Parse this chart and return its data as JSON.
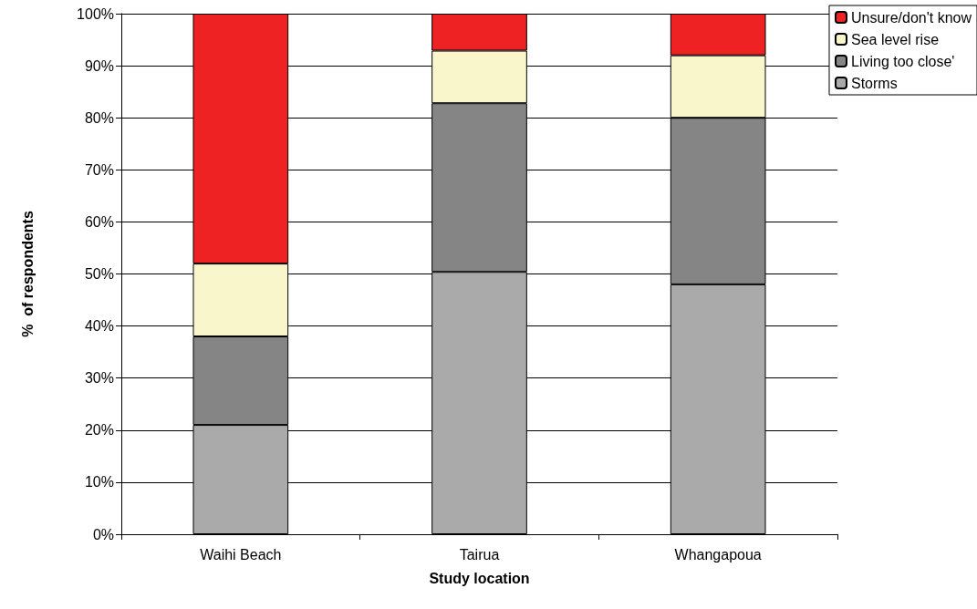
{
  "chart_data": {
    "type": "bar",
    "stacked": true,
    "xlabel": "Study location",
    "ylabel": "%  of respondents",
    "categories": [
      "Waihi Beach",
      "Tairua",
      "Whangapoua"
    ],
    "series": [
      {
        "name": "Storms",
        "color": "#aaaaaa",
        "values": [
          21,
          50.4,
          48
        ]
      },
      {
        "name": "Living too close'",
        "color": "#858585",
        "values": [
          17,
          32.4,
          32
        ]
      },
      {
        "name": "Sea level rise",
        "color": "#f9f6cb",
        "values": [
          14,
          10.1,
          12
        ]
      },
      {
        "name": "Unsure/don't know",
        "color": "#ee2222",
        "values": [
          48,
          7.1,
          8
        ]
      }
    ],
    "ylim": [
      0,
      100
    ],
    "yticks": [
      {
        "value": 0,
        "label": "0%"
      },
      {
        "value": 10,
        "label": "10%"
      },
      {
        "value": 20,
        "label": "20%"
      },
      {
        "value": 30,
        "label": "30%"
      },
      {
        "value": 40,
        "label": "40%"
      },
      {
        "value": 50,
        "label": "50%"
      },
      {
        "value": 60,
        "label": "60%"
      },
      {
        "value": 70,
        "label": "70%"
      },
      {
        "value": 80,
        "label": "80%"
      },
      {
        "value": 90,
        "label": "90%"
      },
      {
        "value": 100,
        "label": "100%"
      }
    ],
    "grid": "y",
    "legend": "top right"
  }
}
